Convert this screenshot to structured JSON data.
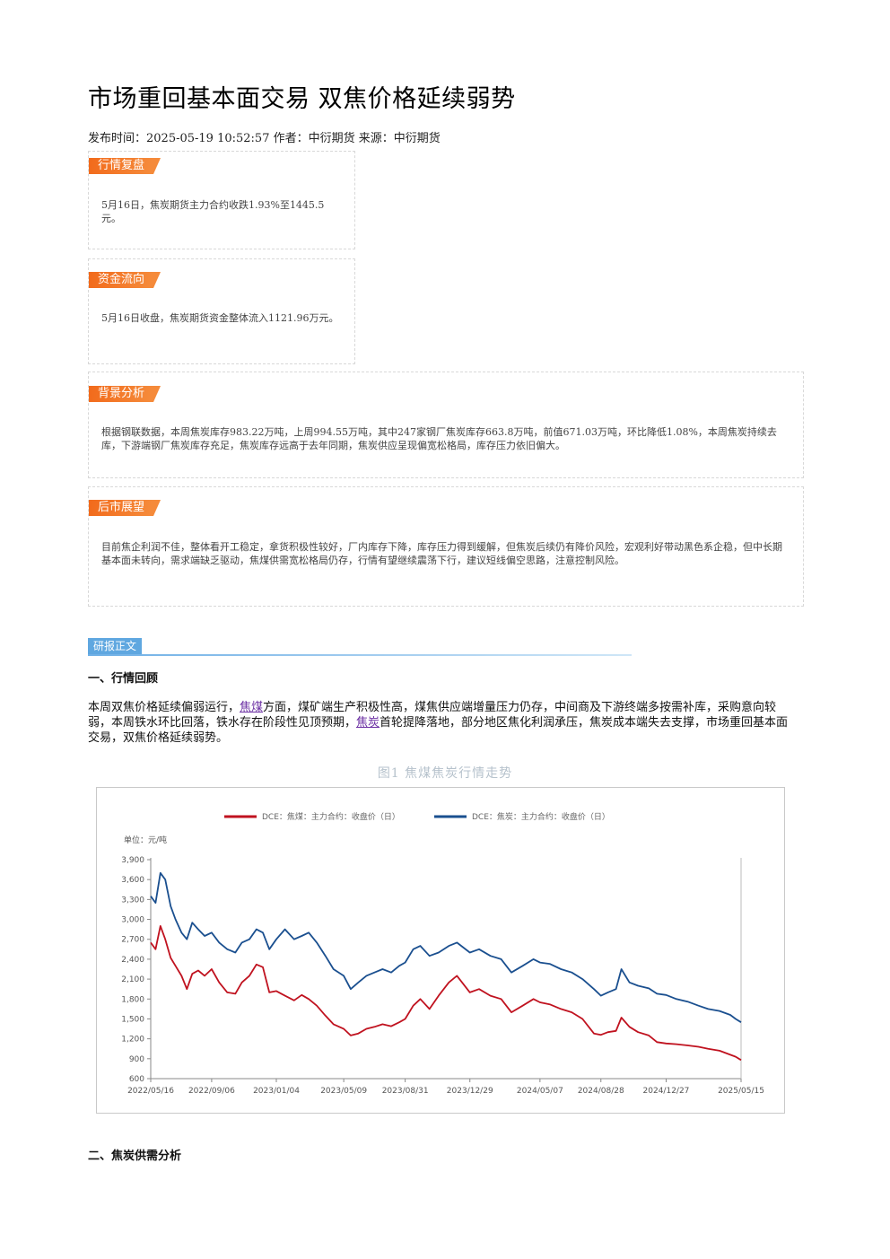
{
  "article": {
    "title": "市场重回基本面交易 双焦价格延续弱势",
    "meta": "发布时间：2025-05-19 10:52:57 作者：中衍期货 来源：中衍期货"
  },
  "boxes": {
    "review": {
      "tag": "行情复盘",
      "text": "5月16日，焦炭期货主力合约收跌1.93%至1445.5元。"
    },
    "flow": {
      "tag": "资金流向",
      "text": "5月16日收盘，焦炭期货资金整体流入1121.96万元。"
    },
    "background": {
      "tag": "背景分析",
      "text": "根据钢联数据，本周焦炭库存983.22万吨，上周994.55万吨，其中247家钢厂焦炭库存663.8万吨，前值671.03万吨，环比降低1.08%，本周焦炭持续去库，下游端钢厂焦炭库存充足，焦炭库存远高于去年同期，焦炭供应呈现偏宽松格局，库存压力依旧偏大。"
    },
    "outlook": {
      "tag": "后市展望",
      "text": "目前焦企利润不佳，整体看开工稳定，拿货积极性较好，厂内库存下降，库存压力得到缓解，但焦炭后续仍有降价风险，宏观利好带动黑色系企稳，但中长期基本面未转向，需求端缺乏驱动，焦煤供需宽松格局仍存，行情有望继续震荡下行，建议短线偏空思路，注意控制风险。"
    }
  },
  "body": {
    "section_tag": "研报正文",
    "h1": "一、行情回顾",
    "para_1": "本周双焦价格延续偏弱运行，",
    "link_1": "焦煤",
    "para_2": "方面，煤矿端生产积极性高，煤焦供应端增量压力仍存，中间商及下游终端多按需补库，采购意向较弱，本周铁水环比回落，铁水存在阶段性见顶预期，",
    "link_2": "焦炭",
    "para_3": "首轮提降落地，部分地区焦化利润承压，焦炭成本端失去支撑，市场重回基本面交易，双焦价格延续弱势。",
    "figure_caption": "图1 焦煤焦炭行情走势",
    "h2": "二、焦炭供需分析"
  },
  "colors": {
    "coking_coal": "#c0121f",
    "coke": "#1a4f8f",
    "tag_orange": "#f26a1b",
    "tag_blue": "#5fa7e0"
  },
  "chart_data": {
    "type": "line",
    "unit_label": "单位：元/吨",
    "ylim": [
      600,
      3900
    ],
    "yticks": [
      600,
      900,
      1200,
      1500,
      1800,
      2100,
      2400,
      2700,
      3000,
      3300,
      3600,
      3900
    ],
    "ytick_labels": [
      "600",
      "900",
      "1,200",
      "1,500",
      "1,800",
      "2,100",
      "2,400",
      "2,700",
      "3,000",
      "3,300",
      "3,600",
      "3,900"
    ],
    "x_start": "2022-05-16",
    "x_end": "2025-05-15",
    "xticks": [
      "2022-05-16",
      "2022-09-06",
      "2023-01-04",
      "2023-05-09",
      "2023-08-31",
      "2023-12-29",
      "2024-05-07",
      "2024-08-28",
      "2024-12-27",
      "2025-05-15"
    ],
    "xtick_labels": [
      "2022/05/16",
      "2022/09/06",
      "2023/01/04",
      "2023/05/09",
      "2023/08/31",
      "2023/12/29",
      "2024/05/07",
      "2024/08/28",
      "2024/12/27",
      "2025/05/15"
    ],
    "legend_position": "top",
    "grid": false,
    "series": [
      {
        "name": "DCE：焦煤：主力合约：收盘价（日）",
        "color": "#c0121f",
        "points": [
          [
            "2022-05-16",
            2650
          ],
          [
            "2022-05-25",
            2550
          ],
          [
            "2022-06-03",
            2900
          ],
          [
            "2022-06-12",
            2700
          ],
          [
            "2022-06-22",
            2420
          ],
          [
            "2022-07-01",
            2300
          ],
          [
            "2022-07-12",
            2150
          ],
          [
            "2022-07-22",
            1950
          ],
          [
            "2022-08-01",
            2180
          ],
          [
            "2022-08-12",
            2230
          ],
          [
            "2022-08-24",
            2150
          ],
          [
            "2022-09-06",
            2250
          ],
          [
            "2022-09-20",
            2050
          ],
          [
            "2022-10-05",
            1900
          ],
          [
            "2022-10-20",
            1880
          ],
          [
            "2022-11-01",
            2050
          ],
          [
            "2022-11-15",
            2150
          ],
          [
            "2022-11-28",
            2320
          ],
          [
            "2022-12-10",
            2280
          ],
          [
            "2022-12-22",
            1900
          ],
          [
            "2023-01-04",
            1920
          ],
          [
            "2023-01-20",
            1850
          ],
          [
            "2023-02-06",
            1780
          ],
          [
            "2023-02-20",
            1860
          ],
          [
            "2023-03-05",
            1800
          ],
          [
            "2023-03-20",
            1700
          ],
          [
            "2023-04-05",
            1550
          ],
          [
            "2023-04-20",
            1420
          ],
          [
            "2023-05-09",
            1350
          ],
          [
            "2023-05-22",
            1250
          ],
          [
            "2023-06-05",
            1280
          ],
          [
            "2023-06-20",
            1350
          ],
          [
            "2023-07-05",
            1380
          ],
          [
            "2023-07-20",
            1420
          ],
          [
            "2023-08-05",
            1390
          ],
          [
            "2023-08-20",
            1450
          ],
          [
            "2023-08-31",
            1500
          ],
          [
            "2023-09-15",
            1700
          ],
          [
            "2023-09-28",
            1800
          ],
          [
            "2023-10-15",
            1650
          ],
          [
            "2023-11-01",
            1850
          ],
          [
            "2023-11-20",
            2050
          ],
          [
            "2023-12-05",
            2150
          ],
          [
            "2023-12-29",
            1900
          ],
          [
            "2024-01-15",
            1950
          ],
          [
            "2024-02-05",
            1850
          ],
          [
            "2024-02-25",
            1800
          ],
          [
            "2024-03-15",
            1600
          ],
          [
            "2024-04-05",
            1700
          ],
          [
            "2024-04-25",
            1800
          ],
          [
            "2024-05-07",
            1750
          ],
          [
            "2024-05-25",
            1720
          ],
          [
            "2024-06-15",
            1650
          ],
          [
            "2024-07-05",
            1600
          ],
          [
            "2024-07-25",
            1500
          ],
          [
            "2024-08-15",
            1280
          ],
          [
            "2024-08-28",
            1260
          ],
          [
            "2024-09-10",
            1300
          ],
          [
            "2024-09-25",
            1320
          ],
          [
            "2024-10-05",
            1520
          ],
          [
            "2024-10-20",
            1380
          ],
          [
            "2024-11-05",
            1300
          ],
          [
            "2024-11-25",
            1250
          ],
          [
            "2024-12-10",
            1150
          ],
          [
            "2024-12-27",
            1130
          ],
          [
            "2025-01-15",
            1120
          ],
          [
            "2025-02-05",
            1100
          ],
          [
            "2025-02-25",
            1080
          ],
          [
            "2025-03-15",
            1050
          ],
          [
            "2025-04-05",
            1020
          ],
          [
            "2025-04-25",
            960
          ],
          [
            "2025-05-05",
            930
          ],
          [
            "2025-05-15",
            880
          ]
        ]
      },
      {
        "name": "DCE：焦炭：主力合约：收盘价（日）",
        "color": "#1a4f8f",
        "points": [
          [
            "2022-05-16",
            3350
          ],
          [
            "2022-05-25",
            3250
          ],
          [
            "2022-06-03",
            3700
          ],
          [
            "2022-06-12",
            3600
          ],
          [
            "2022-06-22",
            3200
          ],
          [
            "2022-07-01",
            3000
          ],
          [
            "2022-07-12",
            2800
          ],
          [
            "2022-07-22",
            2700
          ],
          [
            "2022-08-01",
            2950
          ],
          [
            "2022-08-12",
            2850
          ],
          [
            "2022-08-24",
            2750
          ],
          [
            "2022-09-06",
            2800
          ],
          [
            "2022-09-20",
            2650
          ],
          [
            "2022-10-05",
            2550
          ],
          [
            "2022-10-20",
            2500
          ],
          [
            "2022-11-01",
            2650
          ],
          [
            "2022-11-15",
            2700
          ],
          [
            "2022-11-28",
            2850
          ],
          [
            "2022-12-10",
            2800
          ],
          [
            "2022-12-22",
            2550
          ],
          [
            "2023-01-04",
            2700
          ],
          [
            "2023-01-20",
            2850
          ],
          [
            "2023-02-06",
            2700
          ],
          [
            "2023-02-20",
            2750
          ],
          [
            "2023-03-05",
            2800
          ],
          [
            "2023-03-20",
            2650
          ],
          [
            "2023-04-05",
            2450
          ],
          [
            "2023-04-20",
            2250
          ],
          [
            "2023-05-09",
            2150
          ],
          [
            "2023-05-22",
            1950
          ],
          [
            "2023-06-05",
            2050
          ],
          [
            "2023-06-20",
            2150
          ],
          [
            "2023-07-05",
            2200
          ],
          [
            "2023-07-20",
            2250
          ],
          [
            "2023-08-05",
            2200
          ],
          [
            "2023-08-20",
            2300
          ],
          [
            "2023-08-31",
            2350
          ],
          [
            "2023-09-15",
            2550
          ],
          [
            "2023-09-28",
            2600
          ],
          [
            "2023-10-15",
            2450
          ],
          [
            "2023-11-01",
            2500
          ],
          [
            "2023-11-20",
            2600
          ],
          [
            "2023-12-05",
            2650
          ],
          [
            "2023-12-29",
            2500
          ],
          [
            "2024-01-15",
            2550
          ],
          [
            "2024-02-05",
            2450
          ],
          [
            "2024-02-25",
            2400
          ],
          [
            "2024-03-15",
            2200
          ],
          [
            "2024-04-05",
            2300
          ],
          [
            "2024-04-25",
            2400
          ],
          [
            "2024-05-07",
            2350
          ],
          [
            "2024-05-25",
            2330
          ],
          [
            "2024-06-15",
            2250
          ],
          [
            "2024-07-05",
            2200
          ],
          [
            "2024-07-25",
            2100
          ],
          [
            "2024-08-15",
            1950
          ],
          [
            "2024-08-28",
            1850
          ],
          [
            "2024-09-10",
            1900
          ],
          [
            "2024-09-25",
            1950
          ],
          [
            "2024-10-05",
            2250
          ],
          [
            "2024-10-20",
            2050
          ],
          [
            "2024-11-05",
            2000
          ],
          [
            "2024-11-25",
            1960
          ],
          [
            "2024-12-10",
            1880
          ],
          [
            "2024-12-27",
            1860
          ],
          [
            "2025-01-15",
            1800
          ],
          [
            "2025-02-05",
            1760
          ],
          [
            "2025-02-25",
            1700
          ],
          [
            "2025-03-15",
            1650
          ],
          [
            "2025-04-05",
            1620
          ],
          [
            "2025-04-25",
            1560
          ],
          [
            "2025-05-05",
            1500
          ],
          [
            "2025-05-15",
            1450
          ]
        ]
      }
    ]
  }
}
